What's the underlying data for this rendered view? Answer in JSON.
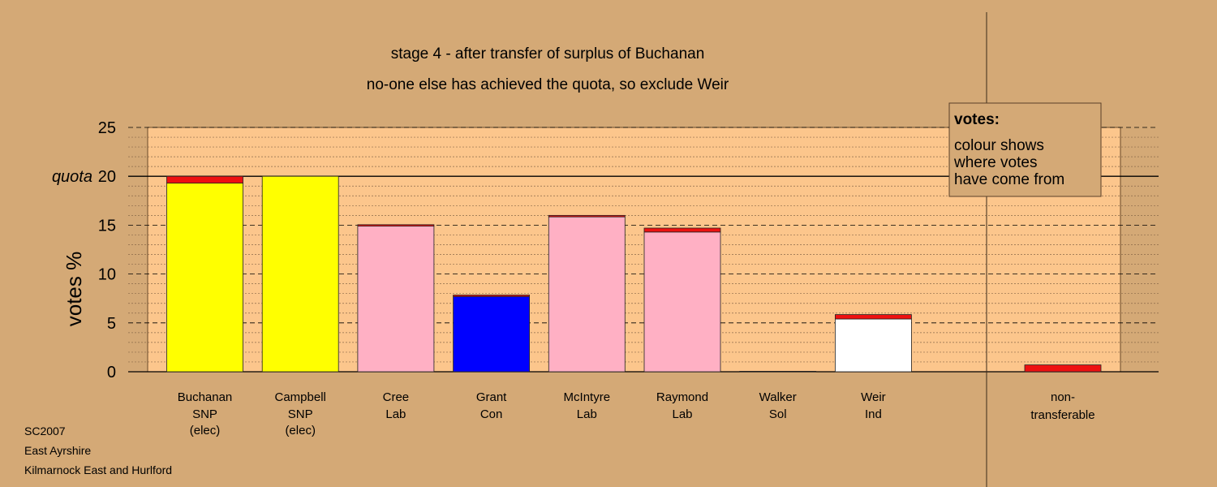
{
  "chart_data": {
    "type": "bar",
    "title": "stage 4 - after transfer of surplus of Buchanan",
    "subtitle": "no-one else has achieved the quota, so exclude Weir",
    "ylabel": "votes %",
    "ylim": [
      0,
      25
    ],
    "yticks": [
      0,
      5,
      10,
      15,
      20,
      25
    ],
    "quota": 20,
    "quota_label": "quota",
    "grid": true,
    "stack_colors": {
      "first": "varies",
      "transfer_from_buchanan": "#ee1111"
    },
    "categories": [
      {
        "name": "Buchanan",
        "party": "SNP",
        "status": "(elec)",
        "first": 19.3,
        "transfer": 0.7,
        "color": "#ffff00"
      },
      {
        "name": "Campbell",
        "party": "SNP",
        "status": "(elec)",
        "first": 20.0,
        "transfer": 0.0,
        "color": "#ffff00"
      },
      {
        "name": "Cree",
        "party": "Lab",
        "status": "",
        "first": 14.9,
        "transfer": 0.15,
        "color": "#ffb0c4"
      },
      {
        "name": "Grant",
        "party": "Con",
        "status": "",
        "first": 7.7,
        "transfer": 0.15,
        "color": "#0000ff"
      },
      {
        "name": "McIntyre",
        "party": "Lab",
        "status": "",
        "first": 15.85,
        "transfer": 0.15,
        "color": "#ffb0c4"
      },
      {
        "name": "Raymond",
        "party": "Lab",
        "status": "",
        "first": 14.3,
        "transfer": 0.4,
        "color": "#ffb0c4"
      },
      {
        "name": "Walker",
        "party": "Sol",
        "status": "",
        "first": 0.05,
        "transfer": 0.0,
        "color": "#ffb0c4"
      },
      {
        "name": "Weir",
        "party": "Ind",
        "status": "",
        "first": 5.4,
        "transfer": 0.45,
        "color": "#ffffff"
      }
    ],
    "non_transferable": {
      "line1": "non-",
      "line2": "transferable",
      "value": 0.7,
      "color": "#ee1111"
    }
  },
  "legend": {
    "title": "votes:",
    "lines": [
      "colour shows",
      "where votes",
      "have come from"
    ]
  },
  "footer": [
    "SC2007",
    "East Ayrshire",
    "Kilmarnock East and Hurlford"
  ],
  "colors": {
    "background": "#d4a976",
    "plot": "#fcc68c"
  }
}
